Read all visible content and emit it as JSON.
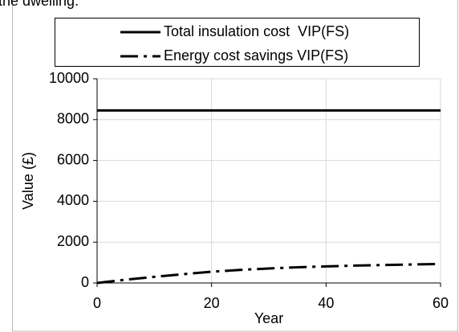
{
  "header_text": "the dwelling.",
  "chart_data": {
    "type": "line",
    "x_label": "Year",
    "y_label": "Value (£)",
    "x": [
      0,
      5,
      10,
      15,
      20,
      25,
      30,
      35,
      40,
      45,
      50,
      55,
      60
    ],
    "series": [
      {
        "name": "Total insulation cost  VIP(FS)",
        "color": "#000000",
        "dash": "solid",
        "values": [
          8450,
          8450,
          8450,
          8450,
          8450,
          8450,
          8450,
          8450,
          8450,
          8450,
          8450,
          8450,
          8450
        ]
      },
      {
        "name": "Energy cost savings VIP(FS)",
        "color": "#000000",
        "dash": "dash-dot",
        "values": [
          0,
          160,
          300,
          430,
          550,
          640,
          710,
          770,
          810,
          850,
          880,
          905,
          930
        ]
      }
    ],
    "xlim": [
      0,
      60
    ],
    "xticks": [
      0,
      20,
      40,
      60
    ],
    "ylim": [
      0,
      10000
    ],
    "yticks": [
      0,
      2000,
      4000,
      6000,
      8000,
      10000
    ],
    "grid": true,
    "legend": "top"
  }
}
